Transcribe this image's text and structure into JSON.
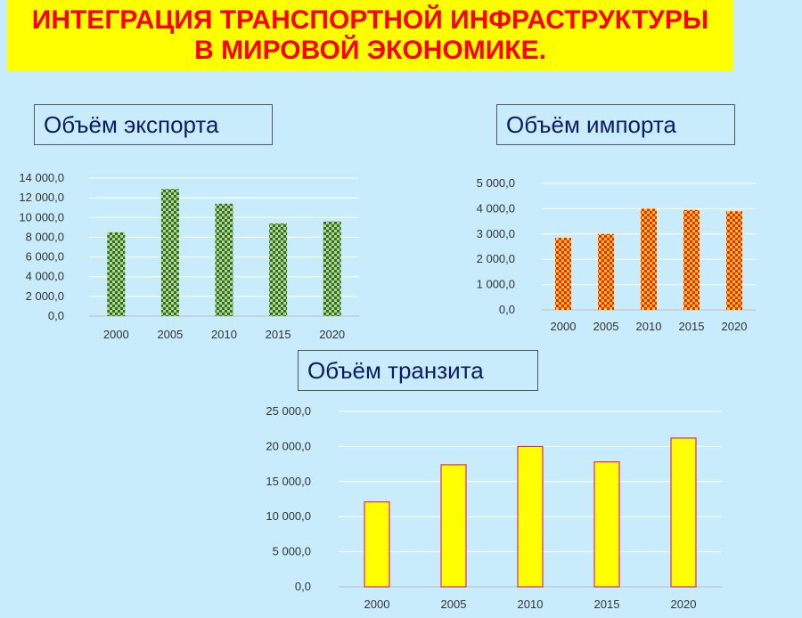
{
  "slide": {
    "title_line1": "ИНТЕГРАЦИЯ ТРАНСПОРТНОЙ ИНФРАСТРУКТУРЫ",
    "title_line2": "В МИРОВОЙ ЭКОНОМИКЕ."
  },
  "colors": {
    "background": "#c8ecfb",
    "banner": "#ffff00",
    "banner_text": "#ff0000",
    "title_text": "#0d1a66"
  },
  "chart_data": [
    {
      "id": "export",
      "type": "bar",
      "title": "Объём экспорта",
      "categories": [
        "2000",
        "2005",
        "2010",
        "2015",
        "2020"
      ],
      "values": [
        8500,
        12900,
        11400,
        9400,
        9600
      ],
      "ylim": [
        0,
        14000
      ],
      "yticks": [
        0,
        2000,
        4000,
        6000,
        8000,
        10000,
        12000,
        14000
      ],
      "ytick_labels": [
        "0,0",
        "2 000,0",
        "4 000,0",
        "6 000,0",
        "8 000,0",
        "10 000,0",
        "12 000,0",
        "14 000,0"
      ],
      "grid": true,
      "bar_fill": "checker",
      "bar_colors": [
        "#1a5fb4",
        "#c8e600"
      ]
    },
    {
      "id": "import",
      "type": "bar",
      "title": "Объём импорта",
      "categories": [
        "2000",
        "2005",
        "2010",
        "2015",
        "2020"
      ],
      "values": [
        2850,
        3000,
        4000,
        3950,
        3900
      ],
      "ylim": [
        0,
        5000
      ],
      "yticks": [
        0,
        1000,
        2000,
        3000,
        4000,
        5000
      ],
      "ytick_labels": [
        "0,0",
        "1 000,0",
        "2 000,0",
        "3 000,0",
        "4 000,0",
        "5 000,0"
      ],
      "grid": true,
      "bar_fill": "checker",
      "bar_colors": [
        "#ff1a1a",
        "#ffd400"
      ]
    },
    {
      "id": "transit",
      "type": "bar",
      "title": "Объём транзита",
      "categories": [
        "2000",
        "2005",
        "2010",
        "2015",
        "2020"
      ],
      "values": [
        12100,
        17400,
        20000,
        17800,
        21200
      ],
      "ylim": [
        0,
        25000
      ],
      "yticks": [
        0,
        5000,
        10000,
        15000,
        20000,
        25000
      ],
      "ytick_labels": [
        "0,0",
        "5 000,0",
        "10 000,0",
        "15 000,0",
        "20 000,0",
        "25 000,0"
      ],
      "grid": true,
      "bar_fill": "solid",
      "bar_colors": [
        "#ffff00",
        "#e0006a"
      ]
    }
  ]
}
